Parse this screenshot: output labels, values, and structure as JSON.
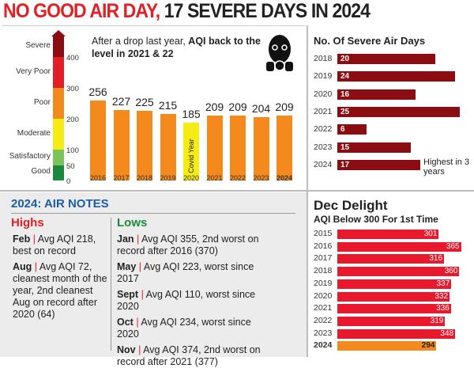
{
  "title": {
    "part1": "NO GOOD AIR DAY,",
    "part2": "17 SEVERE DAYS IN 2024"
  },
  "scale": {
    "bands": [
      {
        "label": "Severe",
        "color": "#8b0d12",
        "from": 400,
        "to": 470
      },
      {
        "label": "Very Poor",
        "color": "#e31e24",
        "from": 300,
        "to": 400
      },
      {
        "label": "Poor",
        "color": "#f4891e",
        "from": 200,
        "to": 300
      },
      {
        "label": "Moderate",
        "color": "#f6ec13",
        "from": 100,
        "to": 200
      },
      {
        "label": "Satisfactory",
        "color": "#7dc35b",
        "from": 50,
        "to": 100
      },
      {
        "label": "Good",
        "color": "#1a8a3a",
        "from": 0,
        "to": 50
      }
    ],
    "ticks": [
      "400",
      "300",
      "200",
      "100",
      "50",
      "0"
    ]
  },
  "chart_data": [
    {
      "type": "bar",
      "title": "After a drop last year, AQI back to the level in 2021 & 22",
      "title_plain": "After a drop last year,",
      "title_bold": "AQI back to the level in 2021 & 22",
      "categories": [
        "2016",
        "2017",
        "2018",
        "2019",
        "2020",
        "2021",
        "2022",
        "2023",
        "2024"
      ],
      "values": [
        256,
        227,
        225,
        215,
        185,
        209,
        209,
        204,
        209
      ],
      "annotations": [
        {
          "category": "2020",
          "text": "Covid Year"
        }
      ],
      "colors": {
        "default": "#f4891e",
        "2020": "#f6ec13"
      }
    },
    {
      "type": "bar",
      "orientation": "horizontal",
      "title": "No. Of Severe Air Days",
      "categories": [
        "2018",
        "2019",
        "2020",
        "2021",
        "2022",
        "2023",
        "2024"
      ],
      "values": [
        20,
        24,
        16,
        25,
        6,
        15,
        17
      ],
      "annotations": [
        {
          "category": "2024",
          "text": "Highest in 3 years"
        }
      ],
      "color": "#8b0d12"
    },
    {
      "type": "bar",
      "orientation": "horizontal",
      "title": "Dec Delight",
      "subtitle": "AQI Below 300 For 1st Time",
      "categories": [
        "2015",
        "2016",
        "2017",
        "2018",
        "2019",
        "2020",
        "2021",
        "2022",
        "2023",
        "2024"
      ],
      "values": [
        301,
        365,
        316,
        360,
        337,
        332,
        336,
        319,
        348,
        294
      ],
      "color": "#e8192c",
      "highlight_color": "#f4891e"
    }
  ],
  "notes": {
    "title": "2024: AIR NOTES",
    "highs_label": "Highs",
    "lows_label": "Lows",
    "highs": [
      {
        "month": "Feb",
        "text": "Avg AQI 218, best on record"
      },
      {
        "month": "Aug",
        "text": "Avg AQI 72, cleanest month of the year, 2nd cleanest Aug on record after 2020 (64)"
      }
    ],
    "lows": [
      {
        "month": "Jan",
        "text": "Avg AQI 355, 2nd worst on record after 2016 (370)"
      },
      {
        "month": "May",
        "text": "Avg AQI 223, worst since 2017"
      },
      {
        "month": "Sept",
        "text": "Avg AQI 110, worst since 2020"
      },
      {
        "month": "Oct",
        "text": "Avg AQI 234, worst since 2020"
      },
      {
        "month": "Nov",
        "text": "Avg AQI 374, 2nd worst on record after 2021 (377)"
      }
    ]
  }
}
